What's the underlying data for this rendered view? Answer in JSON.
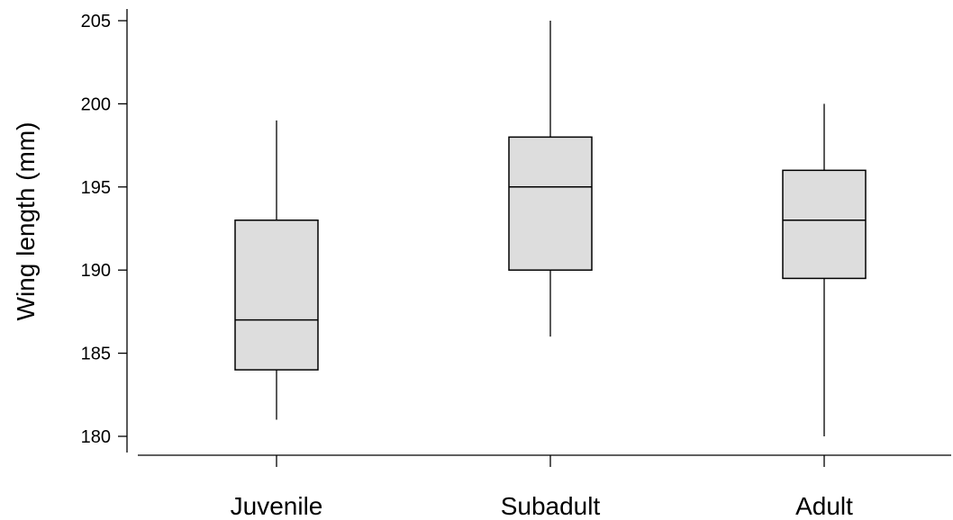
{
  "chart_data": {
    "type": "boxplot",
    "title": "",
    "xlabel": "",
    "ylabel": "Wing length (mm)",
    "ylim": [
      179,
      206
    ],
    "yticks": [
      180,
      185,
      190,
      195,
      200,
      205
    ],
    "grid": false,
    "legend": "none",
    "box_fill": "#dddddd",
    "categories": [
      "Juvenile",
      "Subadult",
      "Adult"
    ],
    "boxes": [
      {
        "category": "Juvenile",
        "min": 181,
        "q1": 184,
        "median": 187,
        "q3": 193,
        "max": 199
      },
      {
        "category": "Subadult",
        "min": 186,
        "q1": 190,
        "median": 195,
        "q3": 198,
        "max": 205
      },
      {
        "category": "Adult",
        "min": 180,
        "q1": 189.5,
        "median": 193,
        "q3": 196,
        "max": 200
      }
    ]
  }
}
